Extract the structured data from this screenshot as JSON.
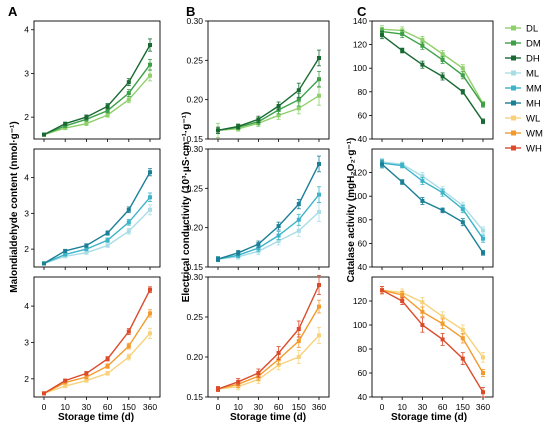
{
  "panel_letters": [
    "A",
    "B",
    "C"
  ],
  "colors": {
    "DL": "#8fd06a",
    "DM": "#3da048",
    "DH": "#186a32",
    "ML": "#a9dde6",
    "MM": "#3bb3c8",
    "MH": "#1a7f97",
    "WL": "#f8d27b",
    "WM": "#f39a2c",
    "WH": "#dc4a2a"
  },
  "legend": [
    "DL",
    "DM",
    "DH",
    "ML",
    "MM",
    "MH",
    "WL",
    "WM",
    "WH"
  ],
  "chart_data": [
    {
      "id": "A",
      "type": "line",
      "ylabel": "Malondialdehyde content (nmol·g⁻¹)",
      "xlabel": "Storage time (d)",
      "categories": [
        "0",
        "10",
        "30",
        "60",
        "150",
        "360"
      ],
      "subplots": [
        {
          "ylim": [
            1.5,
            4.2
          ],
          "yticks": [
            2,
            3,
            4
          ],
          "series": [
            {
              "name": "DL",
              "values": [
                1.6,
                1.75,
                1.85,
                2.05,
                2.4,
                2.95
              ],
              "err": [
                0.02,
                0.03,
                0.04,
                0.05,
                0.07,
                0.12
              ]
            },
            {
              "name": "DM",
              "values": [
                1.6,
                1.8,
                1.95,
                2.15,
                2.55,
                3.2
              ],
              "err": [
                0.02,
                0.03,
                0.04,
                0.05,
                0.08,
                0.12
              ]
            },
            {
              "name": "DH",
              "values": [
                1.6,
                1.85,
                2.0,
                2.25,
                2.8,
                3.65
              ],
              "err": [
                0.02,
                0.03,
                0.05,
                0.06,
                0.08,
                0.14
              ]
            }
          ]
        },
        {
          "ylim": [
            1.5,
            4.8
          ],
          "yticks": [
            2,
            3,
            4
          ],
          "series": [
            {
              "name": "ML",
              "values": [
                1.6,
                1.8,
                1.9,
                2.1,
                2.5,
                3.1
              ],
              "err": [
                0.02,
                0.03,
                0.04,
                0.05,
                0.08,
                0.14
              ]
            },
            {
              "name": "MM",
              "values": [
                1.6,
                1.85,
                2.0,
                2.25,
                2.75,
                3.45
              ],
              "err": [
                0.02,
                0.03,
                0.04,
                0.06,
                0.08,
                0.12
              ]
            },
            {
              "name": "MH",
              "values": [
                1.6,
                1.95,
                2.1,
                2.45,
                3.1,
                4.15
              ],
              "err": [
                0.02,
                0.04,
                0.05,
                0.06,
                0.08,
                0.1
              ]
            }
          ]
        },
        {
          "ylim": [
            1.5,
            4.8
          ],
          "yticks": [
            2,
            3,
            4
          ],
          "series": [
            {
              "name": "WL",
              "values": [
                1.6,
                1.8,
                1.95,
                2.15,
                2.6,
                3.25
              ],
              "err": [
                0.02,
                0.03,
                0.04,
                0.05,
                0.08,
                0.14
              ]
            },
            {
              "name": "WM",
              "values": [
                1.6,
                1.9,
                2.05,
                2.35,
                2.9,
                3.8
              ],
              "err": [
                0.02,
                0.03,
                0.05,
                0.06,
                0.08,
                0.1
              ]
            },
            {
              "name": "WH",
              "values": [
                1.6,
                1.95,
                2.15,
                2.55,
                3.3,
                4.45
              ],
              "err": [
                0.02,
                0.04,
                0.05,
                0.06,
                0.08,
                0.08
              ]
            }
          ]
        }
      ]
    },
    {
      "id": "B",
      "type": "line",
      "ylabel": "Electrical conductivity (10³·μS·cm⁻¹·g⁻¹)",
      "xlabel": "Storage time (d)",
      "categories": [
        "0",
        "10",
        "30",
        "60",
        "150",
        "360"
      ],
      "subplots": [
        {
          "ylim": [
            0.15,
            0.3
          ],
          "yticks": [
            0.15,
            0.2,
            0.25,
            0.3
          ],
          "series": [
            {
              "name": "DL",
              "values": [
                0.161,
                0.163,
                0.17,
                0.18,
                0.189,
                0.205
              ],
              "err": [
                0.009,
                0.003,
                0.004,
                0.005,
                0.007,
                0.012
              ]
            },
            {
              "name": "DM",
              "values": [
                0.161,
                0.165,
                0.172,
                0.187,
                0.2,
                0.226
              ],
              "err": [
                0.004,
                0.003,
                0.004,
                0.005,
                0.008,
                0.01
              ]
            },
            {
              "name": "DH",
              "values": [
                0.161,
                0.166,
                0.175,
                0.192,
                0.212,
                0.253
              ],
              "err": [
                0.004,
                0.003,
                0.004,
                0.005,
                0.009,
                0.01
              ]
            }
          ]
        },
        {
          "ylim": [
            0.15,
            0.3
          ],
          "yticks": [
            0.15,
            0.2,
            0.25,
            0.3
          ],
          "series": [
            {
              "name": "ML",
              "values": [
                0.16,
                0.163,
                0.17,
                0.183,
                0.196,
                0.22
              ],
              "err": [
                0.003,
                0.003,
                0.004,
                0.005,
                0.007,
                0.012
              ]
            },
            {
              "name": "MM",
              "values": [
                0.16,
                0.165,
                0.174,
                0.19,
                0.21,
                0.242
              ],
              "err": [
                0.003,
                0.003,
                0.004,
                0.005,
                0.007,
                0.01
              ]
            },
            {
              "name": "MH",
              "values": [
                0.16,
                0.168,
                0.179,
                0.202,
                0.23,
                0.281
              ],
              "err": [
                0.003,
                0.003,
                0.004,
                0.005,
                0.006,
                0.01
              ]
            }
          ]
        },
        {
          "ylim": [
            0.15,
            0.3
          ],
          "yticks": [
            0.15,
            0.2,
            0.25,
            0.3
          ],
          "series": [
            {
              "name": "WL",
              "values": [
                0.16,
                0.163,
                0.172,
                0.19,
                0.2,
                0.227
              ],
              "err": [
                0.003,
                0.004,
                0.005,
                0.006,
                0.008,
                0.01
              ]
            },
            {
              "name": "WM",
              "values": [
                0.16,
                0.166,
                0.176,
                0.197,
                0.22,
                0.263
              ],
              "err": [
                0.003,
                0.004,
                0.005,
                0.006,
                0.008,
                0.008
              ]
            },
            {
              "name": "WH",
              "values": [
                0.16,
                0.169,
                0.18,
                0.205,
                0.235,
                0.29
              ],
              "err": [
                0.003,
                0.004,
                0.005,
                0.008,
                0.01,
                0.012
              ]
            }
          ]
        }
      ]
    },
    {
      "id": "C",
      "type": "line",
      "ylabel": "Catalase activity (mgH₂O₂·g⁻¹)",
      "xlabel": "Storage time (d)",
      "categories": [
        "0",
        "10",
        "30",
        "60",
        "150",
        "360"
      ],
      "subplots": [
        {
          "ylim": [
            40,
            140
          ],
          "yticks": [
            40,
            60,
            80,
            100,
            120,
            140
          ],
          "series": [
            {
              "name": "DL",
              "values": [
                133,
                132,
                124,
                112,
                100,
                70
              ],
              "err": [
                3,
                3,
                3,
                3,
                3,
                2
              ]
            },
            {
              "name": "DM",
              "values": [
                131,
                129,
                119,
                107,
                94,
                69
              ],
              "err": [
                3,
                3,
                3,
                3,
                3,
                2
              ]
            },
            {
              "name": "DH",
              "values": [
                128,
                115,
                103,
                93,
                80,
                55
              ],
              "err": [
                3,
                2,
                3,
                3,
                2,
                2
              ]
            }
          ]
        },
        {
          "ylim": [
            40,
            140
          ],
          "yticks": [
            40,
            60,
            80,
            100,
            120
          ],
          "series": [
            {
              "name": "ML",
              "values": [
                129,
                127,
                117,
                105,
                92,
                71
              ],
              "err": [
                3,
                2,
                3,
                3,
                3,
                3
              ]
            },
            {
              "name": "MM",
              "values": [
                128,
                126,
                113,
                103,
                89,
                64
              ],
              "err": [
                3,
                2,
                3,
                3,
                3,
                3
              ]
            },
            {
              "name": "MH",
              "values": [
                127,
                112,
                96,
                88,
                78,
                52
              ],
              "err": [
                3,
                2,
                3,
                2,
                3,
                2
              ]
            }
          ]
        },
        {
          "ylim": [
            40,
            140
          ],
          "yticks": [
            40,
            60,
            80,
            100,
            120
          ],
          "series": [
            {
              "name": "WL",
              "values": [
                129,
                127,
                119,
                107,
                96,
                73
              ],
              "err": [
                3,
                3,
                4,
                4,
                4,
                4
              ]
            },
            {
              "name": "WM",
              "values": [
                129,
                125,
                111,
                101,
                89,
                60
              ],
              "err": [
                3,
                3,
                4,
                4,
                4,
                3
              ]
            },
            {
              "name": "WH",
              "values": [
                129,
                120,
                100,
                88,
                72,
                44
              ],
              "err": [
                3,
                3,
                6,
                5,
                5,
                4
              ]
            }
          ]
        }
      ]
    }
  ]
}
